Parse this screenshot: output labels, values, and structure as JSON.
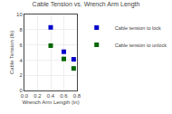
{
  "chart_data": {
    "type": "scatter",
    "title": "Cable Tension vs. Wrench Arm Length",
    "xlabel": "Wrench Arm Length (in)",
    "ylabel": "Cable Tension (lb)",
    "x": [
      0.4,
      0.6,
      0.75
    ],
    "series": [
      {
        "name": "Cable tension to lock",
        "color": "#0000cc",
        "marker": "square",
        "values": [
          8.3,
          5.1,
          4.1
        ]
      },
      {
        "name": "Cable tension to unlock",
        "color": "#006600",
        "marker": "square",
        "values": [
          5.9,
          4.15,
          2.9
        ]
      }
    ],
    "xlim": [
      0.0,
      0.8
    ],
    "ylim": [
      0,
      10
    ],
    "xticks": [
      {
        "value": 0,
        "label": "0.0"
      },
      0.2,
      0.4,
      0.6,
      0.8
    ],
    "yticks": [
      0,
      2,
      4,
      6,
      8,
      10
    ],
    "grid": true,
    "legend": "right"
  }
}
